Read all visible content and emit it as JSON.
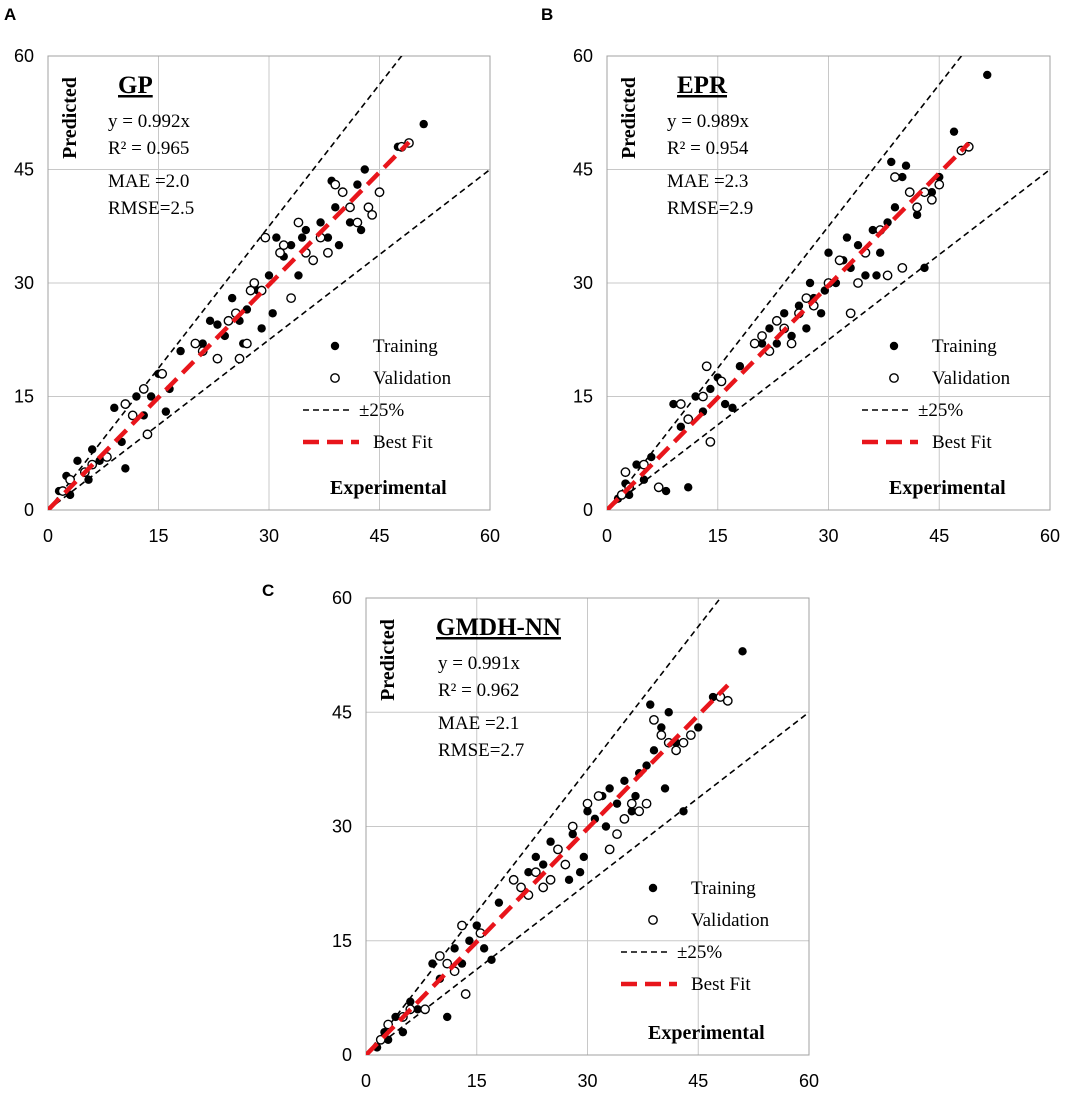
{
  "colors": {
    "training": "#000000",
    "validation_stroke": "#000000",
    "validation_fill": "#ffffff",
    "band": "#000000",
    "best_fit": "#e8151b",
    "grid": "#c8c8c8",
    "frame": "#a0a0a0"
  },
  "chart_data": [
    {
      "panel": "A",
      "type": "scatter",
      "title": "GP",
      "equation": "y = 0.992x",
      "r2": "R² = 0.965",
      "mae": "MAE  =2.0",
      "rmse": "RMSE=2.5",
      "xlabel": "Experimental",
      "ylabel": "Predicted",
      "xlim": [
        0,
        60
      ],
      "ylim": [
        0,
        60
      ],
      "ticks": [
        0,
        15,
        30,
        45,
        60
      ],
      "slope": 0.992,
      "fit_range": [
        0,
        49
      ],
      "band": [
        0.75,
        1.25
      ],
      "legend": [
        "Training",
        "Validation",
        "±25%",
        "Best Fit"
      ],
      "training": [
        [
          1.5,
          2.5
        ],
        [
          2.5,
          4.5
        ],
        [
          3,
          2
        ],
        [
          4,
          6.5
        ],
        [
          5.5,
          4
        ],
        [
          6,
          8
        ],
        [
          7,
          6.5
        ],
        [
          9,
          13.5
        ],
        [
          10,
          9
        ],
        [
          10.5,
          5.5
        ],
        [
          12,
          15
        ],
        [
          13,
          12.5
        ],
        [
          14,
          15
        ],
        [
          15,
          18
        ],
        [
          16,
          13
        ],
        [
          16.5,
          16
        ],
        [
          18,
          21
        ],
        [
          21,
          22
        ],
        [
          22,
          25
        ],
        [
          23,
          24.5
        ],
        [
          24,
          23
        ],
        [
          25,
          28
        ],
        [
          26,
          25
        ],
        [
          26.5,
          22
        ],
        [
          27,
          26.5
        ],
        [
          28,
          30
        ],
        [
          29,
          24
        ],
        [
          30,
          31
        ],
        [
          31,
          36
        ],
        [
          32,
          33.5
        ],
        [
          33,
          35
        ],
        [
          34,
          31
        ],
        [
          35,
          37
        ],
        [
          36,
          33
        ],
        [
          37,
          38
        ],
        [
          38,
          36
        ],
        [
          38.5,
          43.5
        ],
        [
          39,
          40
        ],
        [
          40,
          42
        ],
        [
          41,
          38
        ],
        [
          42,
          43
        ],
        [
          42.5,
          37
        ],
        [
          43,
          45
        ],
        [
          44,
          39
        ],
        [
          47.5,
          48
        ],
        [
          51,
          51
        ],
        [
          28.5,
          29
        ],
        [
          30.5,
          26
        ],
        [
          34.5,
          36
        ],
        [
          39.5,
          35
        ]
      ],
      "validation": [
        [
          2,
          2.5
        ],
        [
          3,
          4
        ],
        [
          5,
          5
        ],
        [
          6,
          6
        ],
        [
          8,
          7
        ],
        [
          10.5,
          14
        ],
        [
          11.5,
          12.5
        ],
        [
          13,
          16
        ],
        [
          13.5,
          10
        ],
        [
          15.5,
          18
        ],
        [
          20,
          22
        ],
        [
          21,
          21
        ],
        [
          23,
          20
        ],
        [
          24.5,
          25
        ],
        [
          25.5,
          26
        ],
        [
          26,
          20
        ],
        [
          27,
          22
        ],
        [
          27.5,
          29
        ],
        [
          28,
          30
        ],
        [
          29,
          29
        ],
        [
          29.5,
          36
        ],
        [
          31.5,
          34
        ],
        [
          32,
          35
        ],
        [
          33,
          28
        ],
        [
          34,
          38
        ],
        [
          35,
          34
        ],
        [
          36,
          33
        ],
        [
          37,
          36
        ],
        [
          38,
          34
        ],
        [
          39,
          43
        ],
        [
          40,
          42
        ],
        [
          41,
          40
        ],
        [
          42,
          38
        ],
        [
          43.5,
          40
        ],
        [
          44,
          39
        ],
        [
          45,
          42
        ],
        [
          48,
          48
        ],
        [
          49,
          48.5
        ]
      ]
    },
    {
      "panel": "B",
      "type": "scatter",
      "title": "EPR",
      "equation": "y = 0.989x",
      "r2": "R² = 0.954",
      "mae": "MAE  =2.3",
      "rmse": "RMSE=2.9",
      "xlabel": "Experimental",
      "ylabel": "Predicted",
      "xlim": [
        0,
        60
      ],
      "ylim": [
        0,
        60
      ],
      "ticks": [
        0,
        15,
        30,
        45,
        60
      ],
      "slope": 0.989,
      "fit_range": [
        0,
        49
      ],
      "band": [
        0.75,
        1.25
      ],
      "legend": [
        "Training",
        "Validation",
        "±25%",
        "Best Fit"
      ],
      "training": [
        [
          1.5,
          1.5
        ],
        [
          2.5,
          3.5
        ],
        [
          3,
          2
        ],
        [
          4,
          6
        ],
        [
          5,
          4
        ],
        [
          6,
          7
        ],
        [
          8,
          2.5
        ],
        [
          9,
          14
        ],
        [
          10,
          11
        ],
        [
          11,
          3
        ],
        [
          12,
          15
        ],
        [
          13,
          13
        ],
        [
          14,
          16
        ],
        [
          15,
          17.5
        ],
        [
          16,
          14
        ],
        [
          17,
          13.5
        ],
        [
          18,
          19
        ],
        [
          21,
          22
        ],
        [
          22,
          24
        ],
        [
          23,
          22
        ],
        [
          24,
          26
        ],
        [
          25,
          23
        ],
        [
          26,
          27
        ],
        [
          27,
          24
        ],
        [
          28,
          28
        ],
        [
          29,
          26
        ],
        [
          30,
          34
        ],
        [
          31,
          30
        ],
        [
          32,
          33
        ],
        [
          33,
          32
        ],
        [
          34,
          35
        ],
        [
          35,
          31
        ],
        [
          36,
          37
        ],
        [
          37,
          34
        ],
        [
          38,
          38
        ],
        [
          38.5,
          46
        ],
        [
          39,
          40
        ],
        [
          40,
          44
        ],
        [
          41,
          42
        ],
        [
          42,
          39
        ],
        [
          43,
          32
        ],
        [
          44,
          42
        ],
        [
          45,
          44
        ],
        [
          47,
          50
        ],
        [
          51.5,
          57.5
        ],
        [
          32.5,
          36
        ],
        [
          36.5,
          31
        ],
        [
          40.5,
          45.5
        ],
        [
          29.5,
          29
        ],
        [
          27.5,
          30
        ]
      ],
      "validation": [
        [
          2,
          2
        ],
        [
          2.5,
          5
        ],
        [
          3,
          3
        ],
        [
          5,
          6
        ],
        [
          7,
          3
        ],
        [
          10,
          14
        ],
        [
          11,
          12
        ],
        [
          13,
          15
        ],
        [
          13.5,
          19
        ],
        [
          14,
          9
        ],
        [
          15.5,
          17
        ],
        [
          20,
          22
        ],
        [
          21,
          23
        ],
        [
          22,
          21
        ],
        [
          23,
          25
        ],
        [
          24,
          24
        ],
        [
          25,
          22
        ],
        [
          26,
          26
        ],
        [
          27,
          28
        ],
        [
          28,
          27
        ],
        [
          30,
          30
        ],
        [
          31.5,
          33
        ],
        [
          33,
          26
        ],
        [
          35,
          34
        ],
        [
          37,
          37
        ],
        [
          38,
          31
        ],
        [
          39,
          44
        ],
        [
          40,
          32
        ],
        [
          41,
          42
        ],
        [
          42,
          40
        ],
        [
          43,
          42
        ],
        [
          44,
          41
        ],
        [
          45,
          43
        ],
        [
          48,
          47.5
        ],
        [
          49,
          48
        ],
        [
          34,
          30
        ]
      ]
    },
    {
      "panel": "C",
      "type": "scatter",
      "title": "GMDH-NN",
      "equation": "y = 0.991x",
      "r2": "R² = 0.962",
      "mae": "MAE  =2.1",
      "rmse": "RMSE=2.7",
      "xlabel": "Experimental",
      "ylabel": "Predicted",
      "xlim": [
        0,
        60
      ],
      "ylim": [
        0,
        60
      ],
      "ticks": [
        0,
        15,
        30,
        45,
        60
      ],
      "slope": 0.991,
      "fit_range": [
        0,
        49
      ],
      "band": [
        0.75,
        1.25
      ],
      "legend": [
        "Training",
        "Validation",
        "±25%",
        "Best Fit"
      ],
      "training": [
        [
          1.5,
          1
        ],
        [
          2.5,
          3
        ],
        [
          3,
          2
        ],
        [
          4,
          5
        ],
        [
          5,
          3
        ],
        [
          6,
          7
        ],
        [
          7,
          6
        ],
        [
          9,
          12
        ],
        [
          10,
          10
        ],
        [
          11,
          5
        ],
        [
          12,
          14
        ],
        [
          13,
          12
        ],
        [
          14,
          15
        ],
        [
          15,
          17
        ],
        [
          16,
          14
        ],
        [
          17,
          12.5
        ],
        [
          18,
          20
        ],
        [
          21,
          22
        ],
        [
          22,
          24
        ],
        [
          23,
          26
        ],
        [
          24,
          25
        ],
        [
          25,
          28
        ],
        [
          26,
          27
        ],
        [
          27,
          25
        ],
        [
          28,
          29
        ],
        [
          29,
          24
        ],
        [
          30,
          32
        ],
        [
          31,
          31
        ],
        [
          32,
          34
        ],
        [
          33,
          35
        ],
        [
          34,
          33
        ],
        [
          35,
          36
        ],
        [
          36,
          32
        ],
        [
          37,
          37
        ],
        [
          38,
          38
        ],
        [
          38.5,
          46
        ],
        [
          39,
          40
        ],
        [
          40,
          43
        ],
        [
          41,
          45
        ],
        [
          42,
          41
        ],
        [
          43,
          32
        ],
        [
          44,
          42
        ],
        [
          45,
          43
        ],
        [
          47,
          47
        ],
        [
          51,
          53
        ],
        [
          32.5,
          30
        ],
        [
          36.5,
          34
        ],
        [
          40.5,
          35
        ],
        [
          29.5,
          26
        ],
        [
          27.5,
          23
        ]
      ],
      "validation": [
        [
          2,
          2
        ],
        [
          3,
          4
        ],
        [
          5,
          5
        ],
        [
          6,
          6
        ],
        [
          8,
          6
        ],
        [
          10,
          13
        ],
        [
          11,
          12
        ],
        [
          12,
          11
        ],
        [
          13,
          17
        ],
        [
          13.5,
          8
        ],
        [
          15.5,
          16
        ],
        [
          20,
          23
        ],
        [
          21,
          22
        ],
        [
          22,
          21
        ],
        [
          23,
          24
        ],
        [
          24,
          22
        ],
        [
          25,
          23
        ],
        [
          26,
          27
        ],
        [
          27,
          25
        ],
        [
          28,
          30
        ],
        [
          30,
          33
        ],
        [
          31.5,
          34
        ],
        [
          33,
          27
        ],
        [
          35,
          31
        ],
        [
          36,
          33
        ],
        [
          37,
          32
        ],
        [
          38,
          33
        ],
        [
          39,
          44
        ],
        [
          40,
          42
        ],
        [
          41,
          41
        ],
        [
          42,
          40
        ],
        [
          43,
          41
        ],
        [
          44,
          42
        ],
        [
          48,
          47
        ],
        [
          49,
          46.5
        ],
        [
          34,
          29
        ]
      ]
    }
  ]
}
